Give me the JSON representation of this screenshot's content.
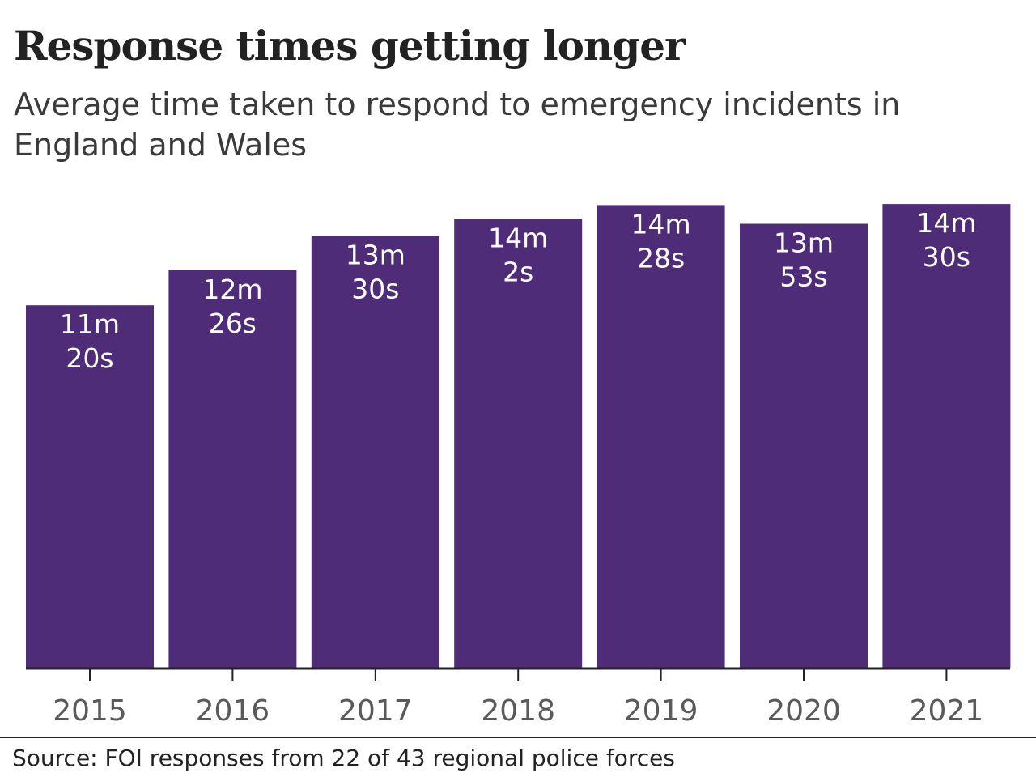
{
  "title": "Response times getting longer",
  "subtitle": "Average time taken to respond to emergency incidents in England and Wales",
  "source": "Source: FOI responses from 22 of 43 regional police forces",
  "colors": {
    "bar": "#4e2c78",
    "axis": "#222222",
    "label": "#ffffff",
    "tick": "#5a5a5a"
  },
  "chart_data": {
    "type": "bar",
    "categories": [
      "2015",
      "2016",
      "2017",
      "2018",
      "2019",
      "2020",
      "2021"
    ],
    "values_seconds": [
      680,
      746,
      810,
      842,
      868,
      833,
      870
    ],
    "data_labels": [
      [
        "11m",
        "20s"
      ],
      [
        "12m",
        "26s"
      ],
      [
        "13m",
        "30s"
      ],
      [
        "14m",
        "2s"
      ],
      [
        "14m",
        "28s"
      ],
      [
        "13m",
        "53s"
      ],
      [
        "14m",
        "30s"
      ]
    ],
    "ylim": [
      0,
      900
    ],
    "grid": false,
    "legend": "none"
  }
}
